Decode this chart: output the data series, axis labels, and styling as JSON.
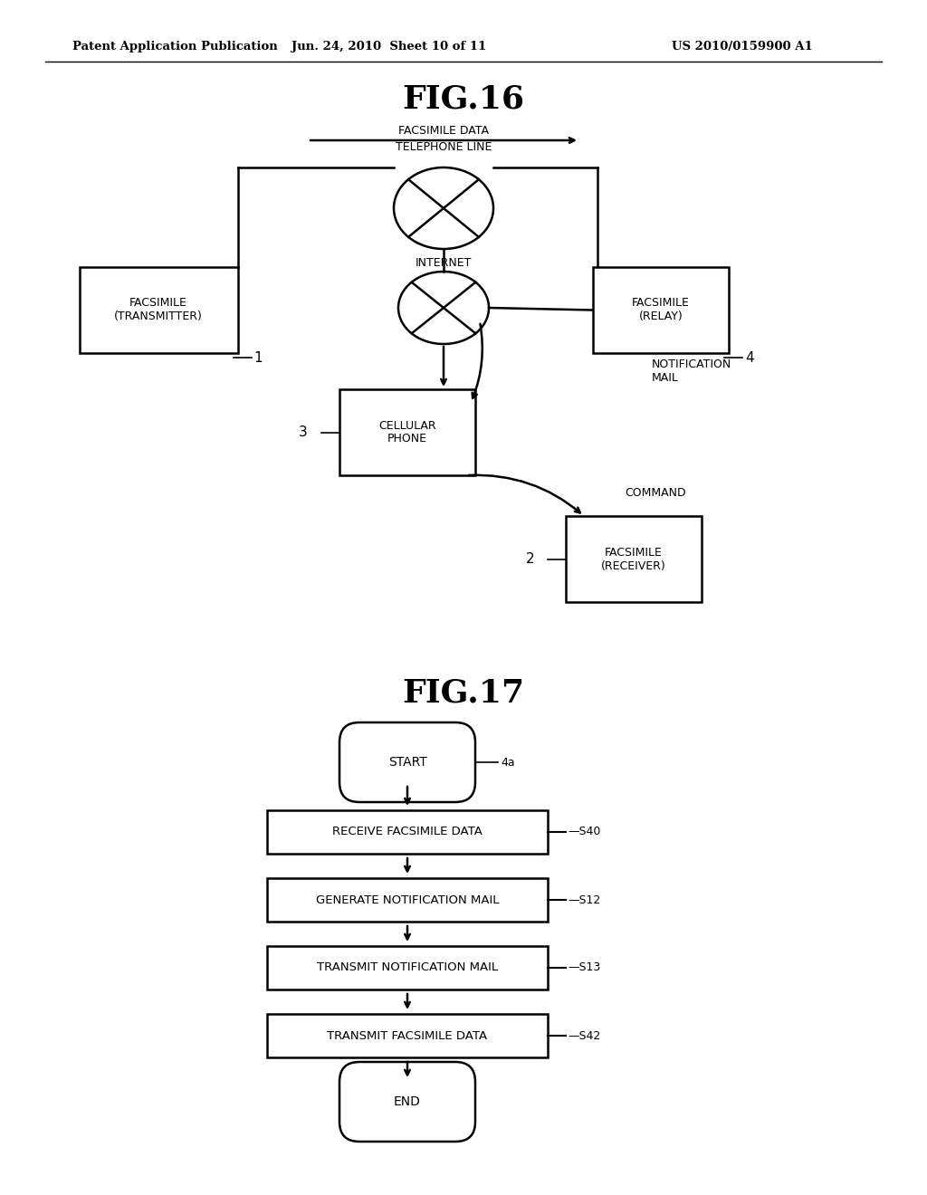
{
  "bg_color": "#ffffff",
  "header_text": "Patent Application Publication",
  "header_date": "Jun. 24, 2010  Sheet 10 of 11",
  "header_patent": "US 2010/0159900 A1",
  "fig16_title": "FIG.16",
  "fig17_title": "FIG.17",
  "fig16": {
    "facsimile_data_label": "FACSIMILE DATA",
    "telephone_line_label": "TELEPHONE LINE",
    "internet_label": "INTERNET",
    "notification_mail_label": "NOTIFICATION\nMAIL",
    "command_label": "COMMAND"
  },
  "fig17": {
    "steps": [
      {
        "label": "START",
        "type": "rounded",
        "step": null
      },
      {
        "label": "RECEIVE FACSIMILE DATA",
        "type": "rect",
        "step": "S40"
      },
      {
        "label": "GENERATE NOTIFICATION MAIL",
        "type": "rect",
        "step": "S12"
      },
      {
        "label": "TRANSMIT NOTIFICATION MAIL",
        "type": "rect",
        "step": "S13"
      },
      {
        "label": "TRANSMIT FACSIMILE DATA",
        "type": "rect",
        "step": "S42"
      },
      {
        "label": "END",
        "type": "rounded",
        "step": null
      }
    ]
  }
}
